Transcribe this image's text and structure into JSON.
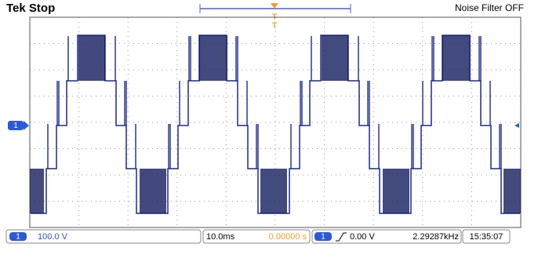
{
  "header": {
    "title": "Tek Stop",
    "status": "Noise Filter OFF"
  },
  "screen": {
    "channel_marker": "1"
  },
  "footer": {
    "channel": "1",
    "volts_per_div": "100.0 V",
    "time_per_div": "10.0ms",
    "trigger_position": "0.00000 s",
    "trigger_channel": "1",
    "trigger_level": "0.00 V",
    "frequency": "2.29287kHz",
    "time": "15:35:07"
  }
}
